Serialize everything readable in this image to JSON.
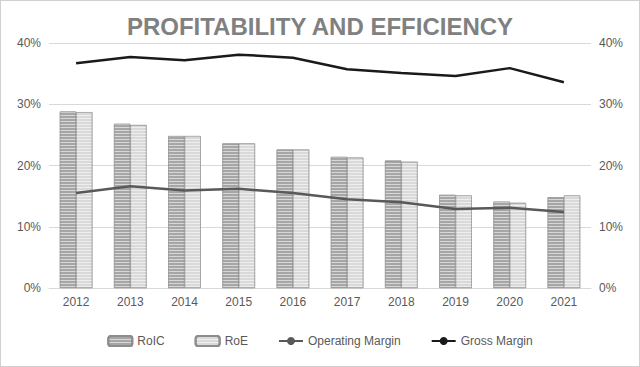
{
  "chart_data": {
    "type": "bar",
    "title": "PROFITABILITY AND EFFICIENCY",
    "categories": [
      "2012",
      "2013",
      "2014",
      "2015",
      "2016",
      "2017",
      "2018",
      "2019",
      "2020",
      "2021"
    ],
    "series": [
      {
        "name": "RoIC",
        "type": "bar",
        "color": "#a6a6a6",
        "values": [
          28.8,
          26.8,
          24.8,
          23.6,
          22.6,
          21.4,
          20.8,
          15.2,
          14.1,
          14.8
        ]
      },
      {
        "name": "RoE",
        "type": "bar",
        "color": "#d9d9d9",
        "values": [
          28.7,
          26.6,
          24.8,
          23.6,
          22.6,
          21.3,
          20.6,
          15.1,
          13.9,
          15.1
        ]
      },
      {
        "name": "Operating Margin",
        "type": "line",
        "color": "#595959",
        "axis": "y2",
        "values": [
          15.5,
          16.6,
          15.9,
          16.2,
          15.5,
          14.5,
          14.0,
          12.9,
          13.1,
          12.4
        ]
      },
      {
        "name": "Gross Margin",
        "type": "line",
        "color": "#1a1a1a",
        "axis": "y2",
        "values": [
          36.7,
          37.7,
          37.2,
          38.1,
          37.6,
          35.7,
          35.1,
          34.6,
          35.9,
          33.6
        ]
      }
    ],
    "ylim": [
      0,
      40
    ],
    "yticks": [
      {
        "value": 0,
        "label": "0%"
      },
      {
        "value": 10,
        "label": "10%"
      },
      {
        "value": 20,
        "label": "20%"
      },
      {
        "value": 30,
        "label": "30%"
      },
      {
        "value": 40,
        "label": "40%"
      }
    ],
    "y2lim": [
      0,
      40
    ],
    "y2ticks": [
      {
        "value": 0,
        "label": "0%"
      },
      {
        "value": 10,
        "label": "10%"
      },
      {
        "value": 20,
        "label": "20%"
      },
      {
        "value": 30,
        "label": "30%"
      },
      {
        "value": 40,
        "label": "40%"
      }
    ],
    "grid": true,
    "legend": "bottom"
  }
}
